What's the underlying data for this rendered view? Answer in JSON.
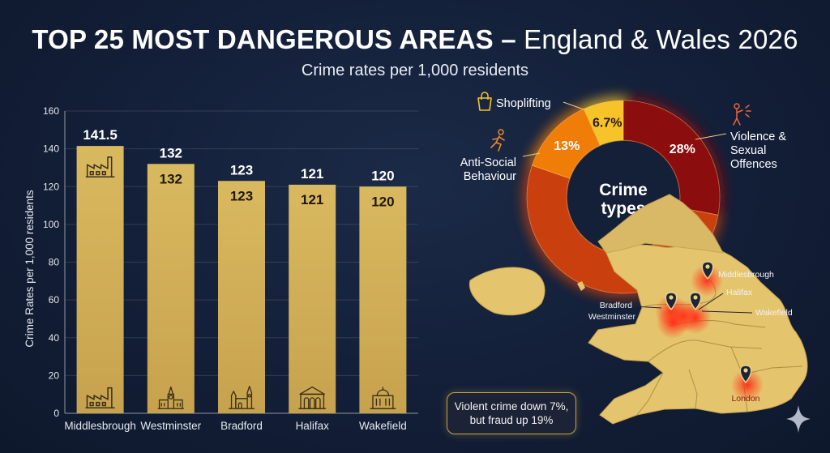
{
  "header": {
    "title_bold": "TOP 25 MOST DANGEROUS AREAS –",
    "title_rest": "England & Wales 2026",
    "subtitle": "Crime rates per 1,000 residents"
  },
  "chart_data": [
    {
      "type": "bar",
      "ylabel": "Crime Rates per 1,000 residents",
      "ylim": [
        0,
        160
      ],
      "yticks": [
        0,
        20,
        40,
        60,
        80,
        100,
        120,
        140,
        160
      ],
      "grid": true,
      "categories": [
        "Middlesbrough",
        "Westminster",
        "Bradford",
        "Halifax",
        "Wakefield"
      ],
      "values": [
        141.5,
        132,
        123,
        121,
        120
      ],
      "value_labels_top": [
        "141.5",
        "132",
        "123",
        "121",
        "120"
      ],
      "value_labels_inner": [
        "",
        "132",
        "123",
        "121",
        "120"
      ],
      "bar_icons": [
        "factory-icon",
        "big-ben-icon",
        "city-hall-icon",
        "piece-hall-icon",
        "domed-building-icon"
      ],
      "bar_color": "#d6b45c"
    },
    {
      "type": "pie",
      "center_label": "Crime types",
      "slices": [
        {
          "label": "Violence & Sexual Offences",
          "value": 28,
          "display": "28%",
          "color": "#8c0d0d",
          "icon": "violence-icon"
        },
        {
          "label": "",
          "value": 52.3,
          "display": "",
          "color": "#c93f0d",
          "icon": ""
        },
        {
          "label": "Anti-Social Behaviour",
          "value": 13,
          "display": "13%",
          "color": "#ef7d08",
          "icon": "running-person-icon"
        },
        {
          "label": "Shoplifting",
          "value": 6.7,
          "display": "6.7%",
          "color": "#f6c329",
          "icon": "shopping-bag-icon"
        }
      ]
    }
  ],
  "map": {
    "locations": [
      {
        "name": "Middlesbrough"
      },
      {
        "name": "Halifax"
      },
      {
        "name": "Bradford"
      },
      {
        "name": "Westminster"
      },
      {
        "name": "Wakefield"
      },
      {
        "name": "London"
      }
    ],
    "land_color": "#e5c46e",
    "hotspot_color": "#ff2a1a"
  },
  "callout": {
    "line1": "Violent crime down 7%,",
    "line2": "but fraud up 19%"
  },
  "colors": {
    "background": "#131f38",
    "gold": "#d6b45c",
    "accent": "#c9a13e"
  }
}
